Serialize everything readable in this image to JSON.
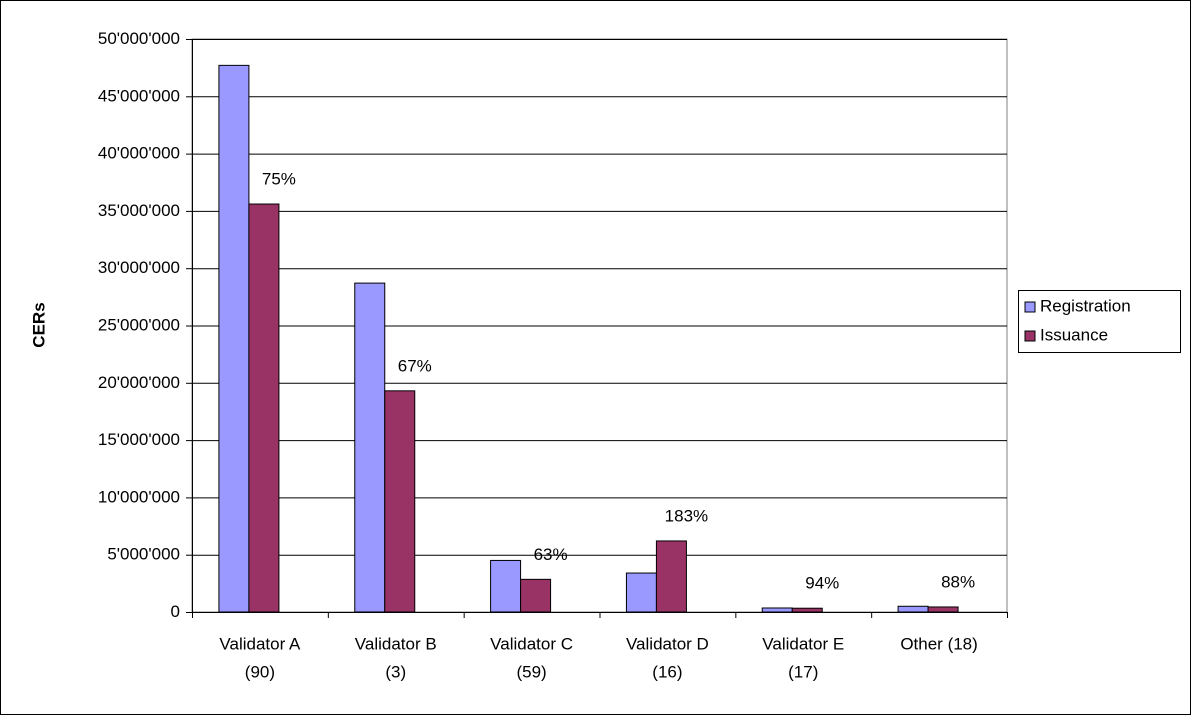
{
  "chart_data": {
    "type": "bar",
    "y_label": "CERs",
    "categories": [
      [
        "Validator A",
        "(90)"
      ],
      [
        "Validator B",
        "(3)"
      ],
      [
        "Validator C",
        "(59)"
      ],
      [
        "Validator D",
        "(16)"
      ],
      [
        "Validator E",
        "(17)"
      ],
      [
        "Other (18)"
      ]
    ],
    "series": [
      {
        "name": "Registration",
        "color": "#9999ff",
        "values": [
          47700000,
          28700000,
          4500000,
          3400000,
          350000,
          500000
        ]
      },
      {
        "name": "Issuance",
        "color": "#993366",
        "values": [
          35600000,
          19300000,
          2850000,
          6200000,
          330000,
          440000
        ]
      }
    ],
    "annotations": [
      "75%",
      "67%",
      "63%",
      "183%",
      "94%",
      "88%"
    ],
    "ylim": [
      0,
      50000000
    ],
    "yticks": [
      0,
      {
        "value": 5000000,
        "label": "5'000'000"
      },
      {
        "value": 10000000,
        "label": "10'000'000"
      },
      {
        "value": 15000000,
        "label": "15'000'000"
      },
      {
        "value": 20000000,
        "label": "20'000'000"
      },
      {
        "value": 25000000,
        "label": "25'000'000"
      },
      {
        "value": 30000000,
        "label": "30'000'000"
      },
      {
        "value": 35000000,
        "label": "35'000'000"
      },
      {
        "value": 40000000,
        "label": "40'000'000"
      },
      {
        "value": 45000000,
        "label": "45'000'000"
      },
      {
        "value": 50000000,
        "label": "50'000'000"
      }
    ],
    "grid": true,
    "legend": "right"
  }
}
